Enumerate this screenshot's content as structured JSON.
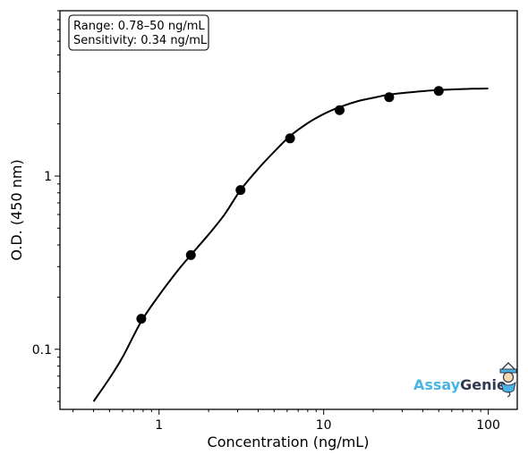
{
  "chart_data": {
    "type": "scatter",
    "xlabel": "Concentration (ng/mL)",
    "ylabel": "O.D. (450 nm)",
    "x_scale": "log",
    "y_scale": "log",
    "xlim": [
      0.25,
      150
    ],
    "ylim": [
      0.045,
      9
    ],
    "x_ticks": [
      {
        "value": 1,
        "label": "1"
      },
      {
        "value": 10,
        "label": "10"
      },
      {
        "value": 100,
        "label": "100"
      }
    ],
    "y_ticks": [
      {
        "value": 0.1,
        "label": "0.1"
      },
      {
        "value": 1,
        "label": "1"
      }
    ],
    "grid": false,
    "series": [
      {
        "kind": "points",
        "x": [
          0.78,
          1.56,
          3.125,
          6.25,
          12.5,
          25,
          50
        ],
        "y": [
          0.15,
          0.35,
          0.83,
          1.65,
          2.4,
          2.85,
          3.1
        ]
      },
      {
        "kind": "fit-curve",
        "x": [
          0.4,
          0.5,
          0.6,
          0.78,
          1.0,
          1.3,
          1.56,
          2.0,
          2.5,
          3.125,
          4.0,
          5.0,
          6.25,
          8.0,
          10.0,
          12.5,
          16.0,
          20.0,
          25.0,
          32.0,
          40.0,
          50.0,
          64.0,
          80.0,
          100.0
        ],
        "y": [
          0.05,
          0.068,
          0.09,
          0.145,
          0.205,
          0.285,
          0.35,
          0.46,
          0.6,
          0.83,
          1.1,
          1.38,
          1.7,
          2.02,
          2.28,
          2.5,
          2.7,
          2.83,
          2.95,
          3.03,
          3.09,
          3.14,
          3.17,
          3.19,
          3.2
        ]
      }
    ],
    "annotation": {
      "lines": [
        "Range: 0.78–50 ng/mL",
        "Sensitivity: 0.34 ng/mL"
      ],
      "placement": "top-left"
    }
  },
  "logo": {
    "part1": "Assay",
    "part2": "Genie",
    "placement": "bottom-right",
    "colors": {
      "assay": "#4bb4e6",
      "genie": "#333a4f"
    }
  }
}
